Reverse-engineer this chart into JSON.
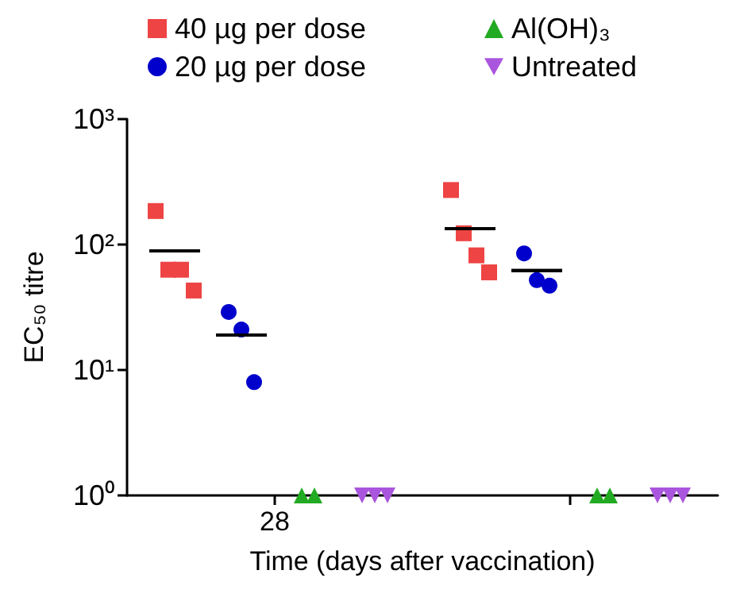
{
  "chart_data": {
    "type": "scatter",
    "xlabel": "Time (days after vaccination)",
    "ylabel": "EC₅₀ titre",
    "categories": [
      "28",
      null
    ],
    "log": "y",
    "ylim": [
      1,
      1000
    ],
    "yticks": [
      {
        "value": 1,
        "label": "10⁰"
      },
      {
        "value": 10,
        "label": "10¹"
      },
      {
        "value": 100,
        "label": "10²"
      },
      {
        "value": 1000,
        "label": "10³"
      }
    ],
    "grid": false,
    "legend": "top",
    "series": [
      {
        "name": "40 µg per dose",
        "color": "#ee4444",
        "marker": "square",
        "values": [
          185,
          272
        ]
      },
      {
        "color": "#ee4444",
        "marker": "square",
        "values": [
          63,
          123
        ]
      },
      {
        "color": "#ee4444",
        "marker": "square",
        "values": [
          63,
          82
        ]
      },
      {
        "color": "#ee4444",
        "marker": "square",
        "values": [
          43,
          60
        ]
      },
      {
        "name": "20 µg per dose",
        "color": "#0000cc",
        "marker": "circle",
        "values": [
          29,
          85
        ]
      },
      {
        "color": "#0000cc",
        "marker": "circle",
        "values": [
          21,
          52
        ]
      },
      {
        "color": "#0000cc",
        "marker": "circle",
        "values": [
          8,
          47
        ]
      },
      {
        "name": "Al(OH)₃",
        "color": "#22aa22",
        "marker": "triangle",
        "values": [
          1,
          1
        ]
      },
      {
        "color": "#22aa22",
        "marker": "triangle",
        "values": [
          1,
          1
        ]
      },
      {
        "name": "Untreated",
        "color": "#aa55dd",
        "marker": "triangle-down",
        "values": [
          1,
          1
        ]
      },
      {
        "color": "#aa55dd",
        "marker": "triangle-down",
        "values": [
          1,
          1
        ]
      },
      {
        "color": "#aa55dd",
        "marker": "triangle-down",
        "values": [
          1,
          1
        ]
      },
      {
        "type": "box",
        "color": "#000000",
        "boxes": [
          {
            "low": 89,
            "q1": 89,
            "median": 89,
            "q3": 89,
            "high": 89
          },
          {
            "low": 134,
            "q1": 134,
            "median": 134,
            "q3": 134,
            "high": 134
          }
        ]
      },
      {
        "type": "box",
        "color": "#000000",
        "boxes": [
          {
            "low": 19,
            "q1": 19,
            "median": 19,
            "q3": 19,
            "high": 19
          },
          {
            "low": 62,
            "q1": 62,
            "median": 62,
            "q3": 62,
            "high": 62
          }
        ]
      }
    ]
  }
}
